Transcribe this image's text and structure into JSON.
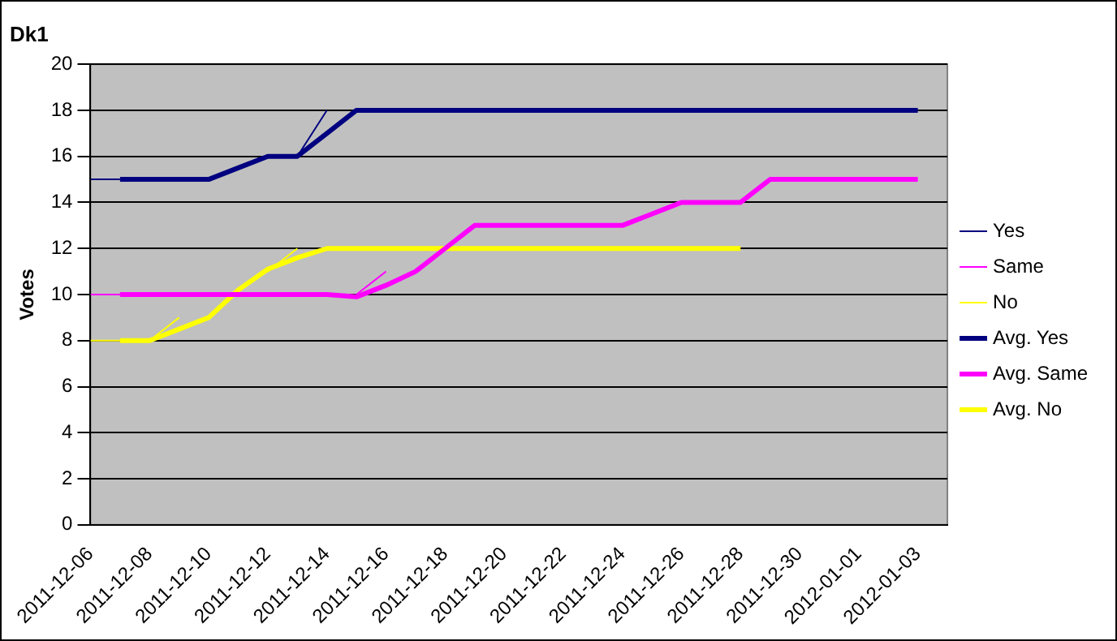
{
  "chart_data": {
    "type": "line",
    "title": "Dk1",
    "ylabel": "Votes",
    "x": [
      "2011-12-06",
      "2011-12-07",
      "2011-12-08",
      "2011-12-09",
      "2011-12-10",
      "2011-12-11",
      "2011-12-12",
      "2011-12-13",
      "2011-12-14",
      "2011-12-15",
      "2011-12-16",
      "2011-12-17",
      "2011-12-18",
      "2011-12-19",
      "2011-12-20",
      "2011-12-21",
      "2011-12-22",
      "2011-12-23",
      "2011-12-24",
      "2011-12-25",
      "2011-12-26",
      "2011-12-27",
      "2011-12-28",
      "2011-12-29",
      "2011-12-30",
      "2011-12-31",
      "2012-01-01",
      "2012-01-02",
      "2012-01-03"
    ],
    "series": [
      {
        "name": "Yes",
        "color": "#000080",
        "values": [
          15,
          15,
          null,
          null,
          null,
          null,
          null,
          16,
          18,
          null,
          null,
          null,
          null,
          null,
          null,
          null,
          null,
          null,
          null,
          null,
          null,
          null,
          null,
          null,
          null,
          null,
          null,
          null,
          null
        ]
      },
      {
        "name": "Same",
        "color": "#ff00ff",
        "values": [
          10,
          10,
          null,
          null,
          null,
          null,
          null,
          null,
          null,
          10,
          11,
          null,
          null,
          null,
          null,
          null,
          null,
          null,
          null,
          null,
          null,
          null,
          null,
          null,
          null,
          null,
          null,
          null,
          null
        ]
      },
      {
        "name": "No",
        "color": "#ffff00",
        "values": [
          8,
          8,
          8,
          9,
          null,
          null,
          11,
          12,
          null,
          null,
          null,
          null,
          null,
          null,
          null,
          null,
          null,
          null,
          null,
          null,
          null,
          null,
          null,
          null,
          null,
          null,
          null,
          null,
          null
        ]
      },
      {
        "name": "Avg. Yes",
        "color": "#000080",
        "values": [
          null,
          15,
          15,
          15,
          15,
          15.5,
          16,
          16,
          17,
          18,
          18,
          18,
          18,
          18,
          18,
          18,
          18,
          18,
          18,
          18,
          18,
          18,
          18,
          18,
          18,
          18,
          18,
          18,
          18
        ]
      },
      {
        "name": "Avg. Same",
        "color": "#ff00ff",
        "values": [
          null,
          10,
          10,
          10,
          10,
          10,
          10,
          10,
          10,
          9.9,
          10.4,
          11,
          12,
          13,
          13,
          13,
          13,
          13,
          13,
          13.5,
          14,
          14,
          14,
          15,
          15,
          15,
          15,
          15,
          15
        ]
      },
      {
        "name": "Avg. No",
        "color": "#ffff00",
        "values": [
          null,
          8,
          8,
          8.5,
          9,
          10.2,
          11.1,
          11.6,
          12,
          12,
          12,
          12,
          12,
          12,
          12,
          12,
          12,
          12,
          12,
          12,
          12,
          12,
          12,
          null,
          null,
          null,
          null,
          null,
          null
        ]
      }
    ],
    "xlim": [
      "2011-12-06",
      "2012-01-04"
    ],
    "xticks": [
      "2011-12-06",
      "2011-12-08",
      "2011-12-10",
      "2011-12-12",
      "2011-12-14",
      "2011-12-16",
      "2011-12-18",
      "2011-12-20",
      "2011-12-22",
      "2011-12-24",
      "2011-12-26",
      "2011-12-28",
      "2011-12-30",
      "2012-01-01",
      "2012-01-03"
    ],
    "ylim": [
      0,
      20
    ],
    "yticks": [
      0,
      2,
      4,
      6,
      8,
      10,
      12,
      14,
      16,
      18,
      20
    ],
    "grid": "y",
    "legend": "right",
    "marker": "none",
    "line_style": "solid"
  }
}
